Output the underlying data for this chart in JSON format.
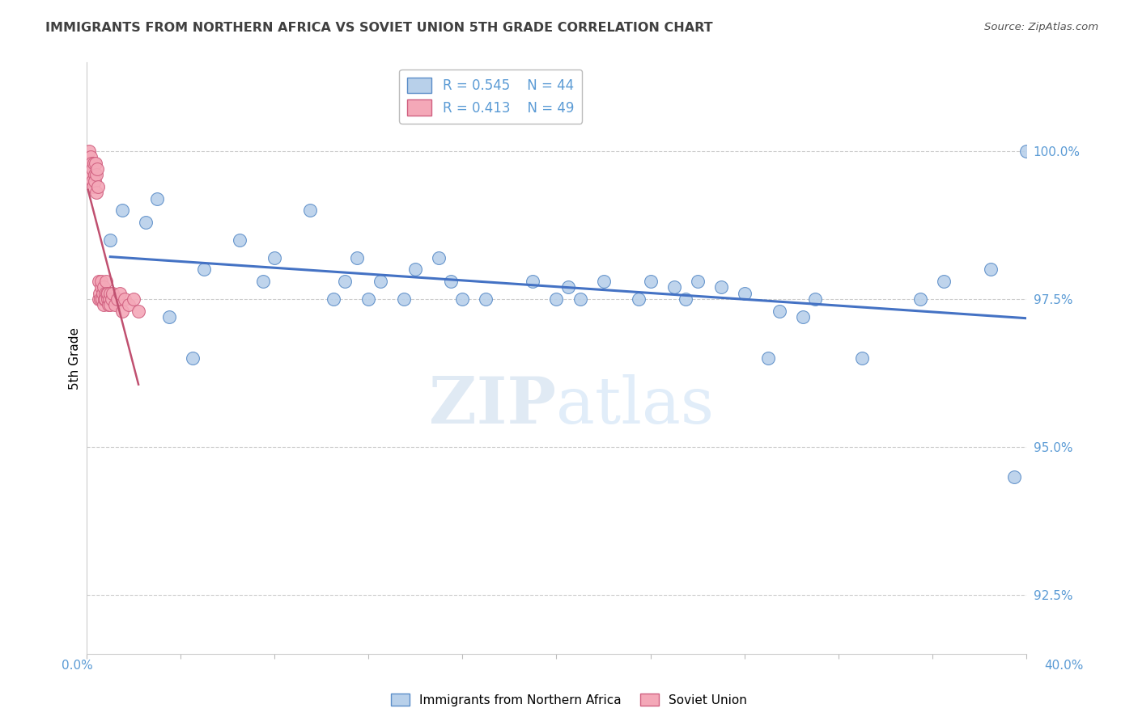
{
  "title": "IMMIGRANTS FROM NORTHERN AFRICA VS SOVIET UNION 5TH GRADE CORRELATION CHART",
  "source": "Source: ZipAtlas.com",
  "ylabel": "5th Grade",
  "xlim": [
    0.0,
    40.0
  ],
  "ylim": [
    91.5,
    101.5
  ],
  "yticks": [
    92.5,
    95.0,
    97.5,
    100.0
  ],
  "ytick_labels": [
    "92.5%",
    "95.0%",
    "97.5%",
    "100.0%"
  ],
  "xticks": [
    0.0,
    4.0,
    8.0,
    12.0,
    16.0,
    20.0,
    24.0,
    28.0,
    32.0,
    36.0,
    40.0
  ],
  "blue_R": 0.545,
  "blue_N": 44,
  "pink_R": 0.413,
  "pink_N": 49,
  "blue_color": "#b8d0ea",
  "pink_color": "#f4a8b8",
  "blue_edge_color": "#5b8dc8",
  "pink_edge_color": "#d06080",
  "blue_line_color": "#4472c4",
  "pink_line_color": "#c05070",
  "legend_label_blue": "Immigrants from Northern Africa",
  "legend_label_pink": "Soviet Union",
  "blue_scatter_x": [
    1.0,
    1.5,
    2.5,
    3.0,
    3.5,
    4.5,
    5.0,
    6.5,
    7.5,
    8.0,
    9.5,
    10.5,
    11.0,
    11.5,
    12.0,
    12.5,
    13.5,
    14.0,
    15.0,
    15.5,
    16.0,
    17.0,
    19.0,
    20.0,
    20.5,
    21.0,
    22.0,
    23.5,
    24.0,
    25.0,
    25.5,
    26.0,
    27.0,
    28.0,
    29.0,
    29.5,
    30.5,
    31.0,
    33.0,
    35.5,
    36.5,
    38.5,
    39.5,
    40.0
  ],
  "blue_scatter_y": [
    98.5,
    99.0,
    98.8,
    99.2,
    97.2,
    96.5,
    98.0,
    98.5,
    97.8,
    98.2,
    99.0,
    97.5,
    97.8,
    98.2,
    97.5,
    97.8,
    97.5,
    98.0,
    98.2,
    97.8,
    97.5,
    97.5,
    97.8,
    97.5,
    97.7,
    97.5,
    97.8,
    97.5,
    97.8,
    97.7,
    97.5,
    97.8,
    97.7,
    97.6,
    96.5,
    97.3,
    97.2,
    97.5,
    96.5,
    97.5,
    97.8,
    98.0,
    94.5,
    100.0
  ],
  "pink_scatter_x": [
    0.05,
    0.08,
    0.1,
    0.12,
    0.15,
    0.18,
    0.2,
    0.22,
    0.25,
    0.28,
    0.3,
    0.32,
    0.35,
    0.38,
    0.4,
    0.42,
    0.45,
    0.48,
    0.5,
    0.52,
    0.55,
    0.58,
    0.6,
    0.62,
    0.65,
    0.68,
    0.7,
    0.72,
    0.75,
    0.78,
    0.8,
    0.82,
    0.85,
    0.88,
    0.9,
    0.92,
    0.95,
    0.98,
    1.0,
    1.05,
    1.1,
    1.2,
    1.3,
    1.4,
    1.5,
    1.6,
    1.8,
    2.0,
    2.2
  ],
  "pink_scatter_y": [
    99.8,
    99.5,
    100.0,
    99.7,
    99.9,
    99.6,
    99.8,
    99.5,
    99.7,
    99.4,
    99.8,
    99.6,
    99.5,
    99.8,
    99.3,
    99.6,
    99.7,
    99.4,
    97.8,
    97.5,
    97.6,
    97.5,
    97.7,
    97.8,
    97.5,
    97.6,
    97.4,
    97.7,
    97.5,
    97.6,
    97.5,
    97.8,
    97.6,
    97.5,
    97.6,
    97.4,
    97.5,
    97.6,
    97.4,
    97.5,
    97.6,
    97.4,
    97.5,
    97.6,
    97.3,
    97.5,
    97.4,
    97.5,
    97.3
  ],
  "watermark_zip": "ZIP",
  "watermark_atlas": "atlas",
  "background_color": "#ffffff",
  "grid_color": "#cccccc",
  "axis_tick_color": "#5b9bd5",
  "title_color": "#404040",
  "figsize": [
    14.06,
    8.92
  ],
  "dpi": 100
}
